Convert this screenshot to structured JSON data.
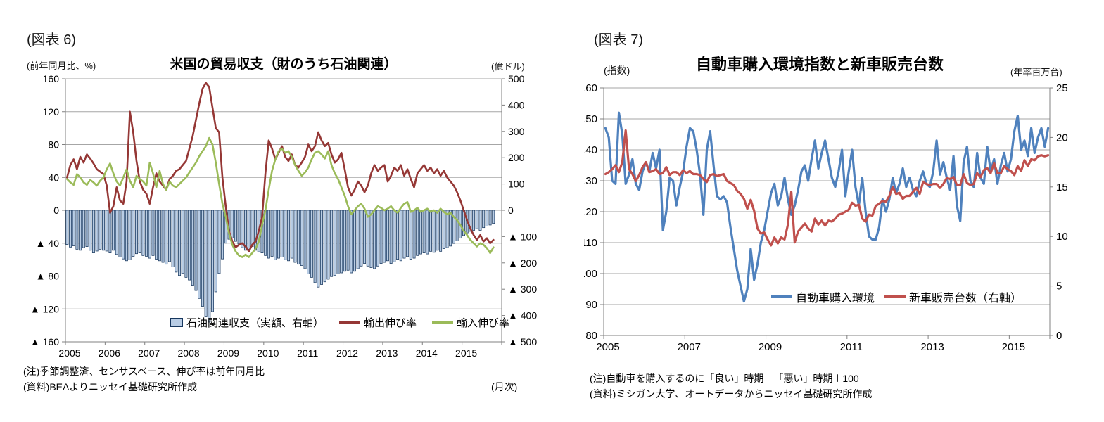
{
  "figure6": {
    "tag": "(図表 6)",
    "title": "米国の貿易収支（財のうち石油関連）",
    "left_axis_unit": "(前年同月比、%)",
    "right_axis_unit": "(億ドル)",
    "frequency_tag": "(月次)",
    "notes": {
      "note1": "(注)季節調整済、センサスベース、伸び率は前年同月比",
      "note2": "(資料)BEAよりニッセイ基礎研究所作成"
    }
  },
  "figure7": {
    "tag": "(図表 7)",
    "title": "自動車購入環境指数と新車販売台数",
    "left_axis_unit": "(指数)",
    "right_axis_unit": "(年率百万台)",
    "notes": {
      "note1": "(注)自動車を購入するのに「良い」時期－「悪い」時期＋100",
      "note2": "(資料)ミシガン大学、オートデータからニッセイ基礎研究所作成"
    }
  },
  "colors": {
    "gridline": "#a6a6a6",
    "axis": "#808080",
    "text": "#000000"
  },
  "chart_data": [
    {
      "type": "bar",
      "subtype": "bar-line-combo",
      "title": "米国の貿易収支（財のうち石油関連）",
      "frequency": "monthly",
      "x_start_year": 2005,
      "months_span": 132,
      "x_tick_years": [
        2005,
        2006,
        2007,
        2008,
        2009,
        2010,
        2011,
        2012,
        2013,
        2014,
        2015
      ],
      "negative_marker": "▲",
      "left_axis": {
        "unit": "前年同月比、%",
        "min": -160,
        "max": 160,
        "step": 40
      },
      "right_axis": {
        "unit": "億ドル",
        "min": -500,
        "max": 500,
        "step": 100
      },
      "grid": true,
      "legend_position": "inside-bottom",
      "series": [
        {
          "name": "石油関連収支（実額、右軸）",
          "type": "bar",
          "axis": "right",
          "fill": "#b9cde5",
          "stroke": "#17375e",
          "values": [
            -130,
            -140,
            -135,
            -148,
            -152,
            -142,
            -138,
            -152,
            -162,
            -155,
            -148,
            -152,
            -155,
            -162,
            -152,
            -168,
            -178,
            -185,
            -192,
            -188,
            -175,
            -165,
            -162,
            -172,
            -175,
            -182,
            -172,
            -186,
            -192,
            -198,
            -205,
            -195,
            -215,
            -235,
            -248,
            -240,
            -255,
            -265,
            -285,
            -305,
            -335,
            -365,
            -405,
            -425,
            -385,
            -310,
            -240,
            -185,
            -125,
            -110,
            -105,
            -118,
            -128,
            -142,
            -152,
            -148,
            -138,
            -152,
            -158,
            -162,
            -172,
            -182,
            -175,
            -188,
            -182,
            -178,
            -188,
            -192,
            -182,
            -198,
            -205,
            -210,
            -222,
            -242,
            -255,
            -275,
            -292,
            -282,
            -272,
            -262,
            -252,
            -248,
            -242,
            -238,
            -232,
            -228,
            -238,
            -232,
            -222,
            -212,
            -202,
            -212,
            -218,
            -222,
            -212,
            -202,
            -198,
            -192,
            -202,
            -196,
            -186,
            -192,
            -182,
            -176,
            -186,
            -182,
            -172,
            -166,
            -162,
            -166,
            -156,
            -160,
            -152,
            -156,
            -146,
            -142,
            -136,
            -126,
            -116,
            -106,
            -96,
            -86,
            -80,
            -76,
            -70,
            -76,
            -66,
            -60,
            -56,
            -50
          ]
        },
        {
          "name": "輸出伸び率",
          "type": "line",
          "axis": "left",
          "color": "#953735",
          "values": [
            40,
            55,
            62,
            50,
            65,
            58,
            68,
            63,
            57,
            50,
            47,
            44,
            30,
            -3,
            5,
            28,
            12,
            8,
            35,
            120,
            95,
            60,
            35,
            25,
            20,
            8,
            28,
            45,
            35,
            30,
            25,
            38,
            42,
            48,
            50,
            55,
            60,
            75,
            90,
            110,
            130,
            148,
            155,
            150,
            125,
            100,
            95,
            40,
            5,
            -25,
            -38,
            -45,
            -42,
            -40,
            -44,
            -50,
            -42,
            -38,
            -25,
            -8,
            45,
            85,
            75,
            62,
            70,
            78,
            65,
            60,
            68,
            55,
            52,
            58,
            65,
            80,
            72,
            78,
            95,
            85,
            78,
            82,
            68,
            58,
            62,
            70,
            50,
            28,
            18,
            25,
            35,
            30,
            22,
            30,
            45,
            55,
            48,
            52,
            55,
            35,
            42,
            52,
            48,
            55,
            42,
            50,
            38,
            28,
            45,
            50,
            55,
            48,
            52,
            45,
            50,
            42,
            48,
            40,
            35,
            30,
            22,
            12,
            0,
            -12,
            -22,
            -30,
            -36,
            -30,
            -38,
            -34,
            -40,
            -36
          ]
        },
        {
          "name": "輸入伸び率",
          "type": "line",
          "axis": "left",
          "color": "#9bbb59",
          "values": [
            38,
            34,
            31,
            44,
            40,
            34,
            31,
            37,
            34,
            30,
            36,
            40,
            50,
            57,
            45,
            35,
            30,
            40,
            50,
            36,
            28,
            42,
            38,
            35,
            30,
            58,
            45,
            28,
            48,
            32,
            25,
            35,
            30,
            28,
            32,
            36,
            40,
            46,
            52,
            58,
            66,
            72,
            78,
            88,
            80,
            58,
            32,
            8,
            -8,
            -28,
            -42,
            -50,
            -55,
            -57,
            -54,
            -57,
            -52,
            -47,
            -38,
            -18,
            0,
            25,
            48,
            62,
            72,
            75,
            70,
            72,
            65,
            55,
            48,
            42,
            46,
            52,
            62,
            70,
            72,
            68,
            63,
            72,
            55,
            45,
            38,
            28,
            18,
            5,
            -5,
            0,
            5,
            8,
            2,
            -8,
            -5,
            0,
            5,
            3,
            0,
            2,
            5,
            0,
            -3,
            3,
            8,
            10,
            -2,
            0,
            3,
            -2,
            0,
            2,
            -2,
            0,
            -3,
            2,
            -2,
            -5,
            -3,
            -8,
            -12,
            -18,
            -25,
            -30,
            -36,
            -40,
            -44,
            -40,
            -42,
            -46,
            -52,
            -45
          ]
        }
      ]
    },
    {
      "type": "line",
      "title": "自動車購入環境指数と新車販売台数",
      "frequency": "monthly",
      "x_start_year": 2005,
      "months_span": 132,
      "x_tick_years": [
        2005,
        2007,
        2009,
        2011,
        2013,
        2015
      ],
      "negative_marker": "",
      "left_axis": {
        "unit": "指数",
        "min": 80,
        "max": 160,
        "step": 10
      },
      "right_axis": {
        "unit": "年率百万台",
        "min": 0,
        "max": 25,
        "step": 5
      },
      "grid": true,
      "legend_position": "inside-bottom-right",
      "series": [
        {
          "name": "自動車購入環境",
          "type": "line",
          "axis": "left",
          "color": "#4f81bd",
          "values": [
            147,
            144,
            130,
            129,
            152,
            145,
            129,
            132,
            137,
            129,
            127,
            133,
            136,
            133,
            139,
            134,
            140,
            114,
            120,
            131,
            130,
            122,
            128,
            133,
            141,
            147,
            146,
            140,
            132,
            119,
            140,
            146,
            135,
            125,
            124,
            125,
            123,
            115,
            108,
            101,
            96,
            91,
            95,
            108,
            98,
            103,
            110,
            114,
            120,
            126,
            129,
            122,
            125,
            131,
            124,
            119,
            122,
            127,
            133,
            135,
            130,
            137,
            143,
            134,
            139,
            143,
            137,
            131,
            128,
            133,
            140,
            125,
            133,
            140,
            128,
            122,
            131,
            120,
            112,
            111,
            111,
            115,
            124,
            120,
            124,
            131,
            126,
            129,
            134,
            128,
            131,
            127,
            125,
            130,
            133,
            129,
            128,
            133,
            143,
            132,
            136,
            131,
            127,
            138,
            122,
            117,
            136,
            141,
            130,
            128,
            139,
            131,
            129,
            141,
            133,
            137,
            129,
            135,
            139,
            133,
            137,
            146,
            151,
            140,
            143,
            138,
            147,
            139,
            144,
            147,
            141,
            147
          ]
        },
        {
          "name": "新車販売台数（右軸）",
          "type": "line",
          "axis": "right",
          "color": "#c0504d",
          "values": [
            16.3,
            16.5,
            16.8,
            17.2,
            16.5,
            17.5,
            20.7,
            16.8,
            16.3,
            15.6,
            16.2,
            17.0,
            17.5,
            16.5,
            16.6,
            16.8,
            16.3,
            16.4,
            17.0,
            16.2,
            16.5,
            16.5,
            16.2,
            16.7,
            16.4,
            16.6,
            16.3,
            16.3,
            16.2,
            15.8,
            15.5,
            16.2,
            16.3,
            16.1,
            16.2,
            16.3,
            15.6,
            15.4,
            15.2,
            14.6,
            14.3,
            13.8,
            12.8,
            13.7,
            12.6,
            10.8,
            10.3,
            10.4,
            9.7,
            9.1,
            9.9,
            9.3,
            9.9,
            9.7,
            11.2,
            14.5,
            9.4,
            10.5,
            10.9,
            11.3,
            10.8,
            10.5,
            11.8,
            11.2,
            11.6,
            11.1,
            11.6,
            11.5,
            11.8,
            12.2,
            12.3,
            12.5,
            12.7,
            13.4,
            13.1,
            13.2,
            11.8,
            11.5,
            12.2,
            12.1,
            13.1,
            13.3,
            13.6,
            13.5,
            14.1,
            15.0,
            14.3,
            14.4,
            13.8,
            14.1,
            14.1,
            14.5,
            14.9,
            14.3,
            15.5,
            15.3,
            15.2,
            15.3,
            15.3,
            14.9,
            15.3,
            15.9,
            15.8,
            16.0,
            15.2,
            15.2,
            16.3,
            15.4,
            15.2,
            15.3,
            16.4,
            16.0,
            16.7,
            16.9,
            16.4,
            17.4,
            16.4,
            16.4,
            17.1,
            16.8,
            16.6,
            16.2,
            17.1,
            16.6,
            17.7,
            17.1,
            17.8,
            17.7,
            18.1,
            18.2,
            18.1,
            18.2
          ]
        }
      ]
    }
  ]
}
